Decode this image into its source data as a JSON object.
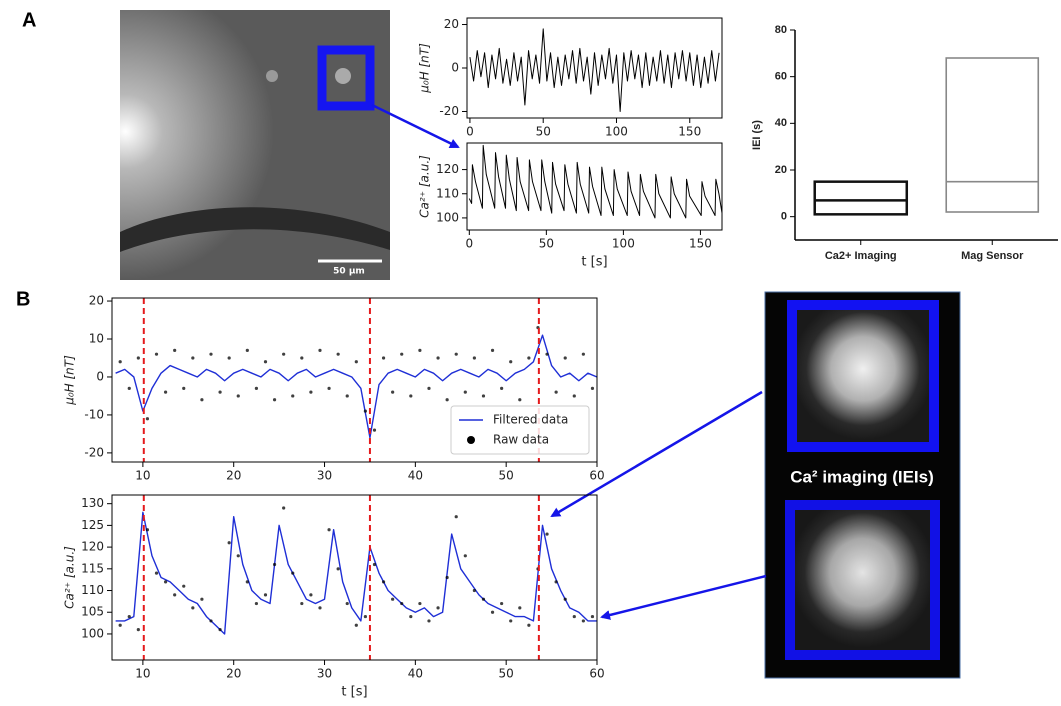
{
  "panels": {
    "label_a": "A",
    "label_b": "B",
    "scale_bar": "50 µm",
    "imaging_caption": "Ca²  imaging (IEIs)"
  },
  "chart_data": [
    {
      "type": "line",
      "ylabel": "μ₀H [nT]",
      "xlim": [
        -2,
        172
      ],
      "ylim": [
        -23,
        23
      ],
      "xticks": [
        0,
        50,
        100,
        150
      ],
      "yticks": [
        -20,
        0,
        20
      ],
      "series": [
        {
          "mode": "line",
          "color": "#000000",
          "x": [
            0,
            2.5,
            5,
            7.5,
            10,
            12.5,
            15,
            17.5,
            20,
            22.5,
            25,
            27.5,
            30,
            32.5,
            35,
            37.5,
            40,
            42.5,
            45,
            47.5,
            50,
            52.5,
            55,
            57.5,
            60,
            62.5,
            65,
            67.5,
            70,
            72.5,
            75,
            77.5,
            80,
            82.5,
            85,
            87.5,
            90,
            92.5,
            95,
            97.5,
            100,
            102.5,
            105,
            107.5,
            110,
            112.5,
            115,
            117.5,
            120,
            122.5,
            125,
            127.5,
            130,
            132.5,
            135,
            137.5,
            140,
            142.5,
            145,
            147.5,
            150,
            152.5,
            155,
            157.5,
            160,
            162.5,
            165,
            167.5,
            170
          ],
          "values": [
            5,
            -6,
            8,
            -4,
            7,
            -9,
            6,
            -5,
            9,
            -7,
            4,
            -8,
            7,
            -6,
            5,
            -17,
            8,
            -5,
            6,
            -7,
            18,
            -6,
            7,
            -9,
            5,
            -8,
            6,
            -5,
            8,
            -7,
            9,
            -6,
            5,
            -12,
            7,
            -8,
            6,
            -5,
            9,
            -7,
            6,
            -20,
            7,
            -6,
            8,
            -5,
            6,
            -9,
            7,
            -8,
            5,
            -6,
            8,
            -7,
            6,
            -9,
            7,
            -5,
            8,
            -6,
            7,
            -8,
            6,
            -9,
            5,
            -7,
            8,
            -6,
            7
          ]
        }
      ]
    },
    {
      "type": "line",
      "ylabel": "Ca²⁺ [a.u.]",
      "xlabel": "t [s]",
      "xlim": [
        -1.5,
        164
      ],
      "ylim": [
        95,
        131
      ],
      "xticks": [
        0,
        50,
        100,
        150
      ],
      "yticks": [
        100,
        110,
        120
      ],
      "series": [
        {
          "mode": "line",
          "color": "#000000",
          "x": [
            0,
            1.5,
            2,
            4,
            8.5,
            9,
            11,
            16.5,
            17,
            19,
            23.5,
            24,
            26,
            30.5,
            31,
            33,
            38.5,
            39,
            41,
            46.5,
            47,
            49,
            53.5,
            54,
            56,
            61.5,
            62,
            64,
            69.5,
            70,
            72,
            77.5,
            78,
            80,
            85.5,
            86,
            88,
            93.5,
            94,
            96,
            102.5,
            103,
            105,
            110.5,
            111,
            113,
            120.5,
            121,
            123,
            130.5,
            131,
            133,
            140.5,
            141,
            143,
            150.5,
            151,
            153,
            159.5,
            160,
            162,
            164
          ],
          "values": [
            108,
            106,
            122,
            115,
            104,
            130,
            118,
            104,
            127,
            117,
            104,
            126,
            116,
            103,
            125,
            115,
            103,
            124,
            115,
            103,
            124,
            115,
            102,
            123,
            114,
            103,
            122,
            114,
            102,
            123,
            114,
            102,
            121,
            113,
            101,
            121,
            112,
            101,
            120,
            112,
            101,
            119,
            111,
            101,
            118,
            111,
            100,
            118,
            110,
            100,
            117,
            110,
            100,
            116,
            109,
            101,
            115,
            109,
            101,
            116,
            110,
            102
          ]
        }
      ]
    },
    {
      "type": "box",
      "ylabel": "IEI (s)",
      "categories": [
        "Ca2+ Imaging",
        "Mag Sensor"
      ],
      "ylim": [
        -10,
        80
      ],
      "yticks": [
        0,
        20,
        40,
        60,
        80
      ],
      "lows": [
        1,
        2
      ],
      "medians": [
        7,
        15
      ],
      "highs": [
        15,
        68
      ],
      "colors": [
        "#111111",
        "#888888"
      ]
    },
    {
      "type": "line",
      "ylabel": "μ₀H [nT]",
      "xlim": [
        6.6,
        60
      ],
      "ylim": [
        -22.4,
        20.8
      ],
      "xticks": [
        10,
        20,
        30,
        40,
        50,
        60
      ],
      "yticks": [
        -20,
        -10,
        0,
        10,
        20
      ],
      "legend": "lower right",
      "event_lines": {
        "color": "#e41a1c",
        "x": [
          10.1,
          35,
          53.6
        ]
      },
      "series": [
        {
          "name": "Filtered data",
          "mode": "line",
          "color": "#1f2fd6",
          "x": [
            7,
            8,
            9,
            10,
            11,
            12,
            13,
            14,
            15,
            16,
            17,
            18,
            19,
            20,
            21,
            22,
            23,
            24,
            25,
            26,
            27,
            28,
            29,
            30,
            31,
            32,
            33,
            34,
            35,
            36,
            37,
            38,
            39,
            40,
            41,
            42,
            43,
            44,
            45,
            46,
            47,
            48,
            49,
            50,
            51,
            52,
            53,
            54,
            55,
            56,
            57,
            58,
            59,
            60
          ],
          "values": [
            1,
            2,
            0,
            -9,
            -3,
            1,
            3,
            2,
            1,
            0,
            2,
            1,
            -1,
            1,
            2,
            1,
            0,
            2,
            1,
            -1,
            1,
            2,
            0,
            1,
            2,
            1,
            0,
            -3,
            -16,
            -2,
            1,
            2,
            1,
            0,
            2,
            1,
            -1,
            1,
            2,
            1,
            0,
            2,
            1,
            -1,
            1,
            2,
            4,
            11,
            3,
            0,
            1,
            -1,
            1,
            0
          ]
        },
        {
          "name": "Raw data",
          "mode": "markers",
          "color": "#000000",
          "x": [
            7.5,
            8.5,
            9.5,
            10.5,
            11.5,
            12.5,
            13.5,
            14.5,
            15.5,
            16.5,
            17.5,
            18.5,
            19.5,
            20.5,
            21.5,
            22.5,
            23.5,
            24.5,
            25.5,
            26.5,
            27.5,
            28.5,
            29.5,
            30.5,
            31.5,
            32.5,
            33.5,
            34.5,
            35.5,
            36.5,
            37.5,
            38.5,
            39.5,
            40.5,
            41.5,
            42.5,
            43.5,
            44.5,
            45.5,
            46.5,
            47.5,
            48.5,
            49.5,
            50.5,
            51.5,
            52.5,
            53.5,
            54.5,
            55.5,
            56.5,
            57.5,
            58.5,
            59.5
          ],
          "values": [
            4,
            -3,
            5,
            -11,
            6,
            -4,
            7,
            -3,
            5,
            -6,
            6,
            -4,
            5,
            -5,
            7,
            -3,
            4,
            -6,
            6,
            -5,
            5,
            -4,
            7,
            -3,
            6,
            -5,
            4,
            -9,
            -14,
            5,
            -4,
            6,
            -5,
            7,
            -3,
            5,
            -6,
            6,
            -4,
            5,
            -5,
            7,
            -3,
            4,
            -6,
            5,
            13,
            6,
            -4,
            5,
            -5,
            6,
            -3
          ]
        }
      ]
    },
    {
      "type": "line",
      "ylabel": "Ca²⁺ [a.u.]",
      "xlabel": "t [s]",
      "xlim": [
        6.6,
        60
      ],
      "ylim": [
        94,
        132
      ],
      "xticks": [
        10,
        20,
        30,
        40,
        50,
        60
      ],
      "yticks": [
        100,
        105,
        110,
        115,
        120,
        125,
        130
      ],
      "event_lines": {
        "color": "#e41a1c",
        "x": [
          10.1,
          35,
          53.6
        ]
      },
      "series": [
        {
          "mode": "line",
          "color": "#1f2fd6",
          "x": [
            7,
            8,
            9,
            10,
            11,
            12,
            13,
            14,
            15,
            16,
            17,
            18,
            19,
            20,
            21,
            22,
            23,
            24,
            25,
            26,
            27,
            28,
            29,
            30,
            31,
            32,
            33,
            34,
            35,
            36,
            37,
            38,
            39,
            40,
            41,
            42,
            43,
            44,
            45,
            46,
            47,
            48,
            49,
            50,
            51,
            52,
            53,
            54,
            55,
            56,
            57,
            58,
            59,
            60
          ],
          "values": [
            103,
            103,
            104,
            128,
            118,
            113,
            112,
            110,
            108,
            107,
            104,
            102,
            100,
            127,
            116,
            110,
            108,
            107,
            125,
            116,
            112,
            108,
            107,
            108,
            124,
            112,
            106,
            103,
            120,
            114,
            110,
            108,
            106,
            105,
            106,
            104,
            105,
            123,
            115,
            112,
            109,
            107,
            106,
            105,
            104,
            104,
            103,
            125,
            115,
            110,
            106,
            105,
            103,
            103
          ]
        },
        {
          "mode": "markers",
          "color": "#000000",
          "x": [
            7.5,
            8.5,
            9.5,
            10.5,
            11.5,
            12.5,
            13.5,
            14.5,
            15.5,
            16.5,
            17.5,
            18.5,
            19.5,
            20.5,
            21.5,
            22.5,
            23.5,
            24.5,
            25.5,
            26.5,
            27.5,
            28.5,
            29.5,
            30.5,
            31.5,
            32.5,
            33.5,
            34.5,
            35.5,
            36.5,
            37.5,
            38.5,
            39.5,
            40.5,
            41.5,
            42.5,
            43.5,
            44.5,
            45.5,
            46.5,
            47.5,
            48.5,
            49.5,
            50.5,
            51.5,
            52.5,
            53.5,
            54.5,
            55.5,
            56.5,
            57.5,
            58.5,
            59.5
          ],
          "values": [
            102,
            104,
            101,
            124,
            114,
            112,
            109,
            111,
            106,
            108,
            103,
            101,
            121,
            118,
            112,
            107,
            109,
            116,
            129,
            114,
            107,
            109,
            106,
            124,
            115,
            107,
            102,
            104,
            116,
            112,
            108,
            107,
            104,
            107,
            103,
            106,
            113,
            127,
            118,
            110,
            108,
            105,
            107,
            103,
            106,
            102,
            115,
            123,
            112,
            108,
            104,
            103,
            104
          ]
        }
      ]
    }
  ]
}
